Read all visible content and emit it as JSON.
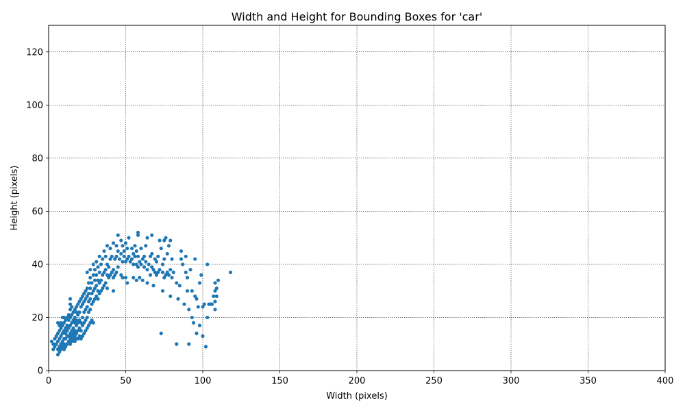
{
  "chart_data": {
    "type": "scatter",
    "title": "Width and Height for Bounding Boxes for 'car'",
    "xlabel": "Width (pixels)",
    "ylabel": "Height (pixels)",
    "xlim": [
      0,
      400
    ],
    "ylim": [
      0,
      130
    ],
    "xticks": [
      0,
      50,
      100,
      150,
      200,
      250,
      300,
      350,
      400
    ],
    "yticks": [
      0,
      20,
      40,
      60,
      80,
      100,
      120
    ],
    "grid": true,
    "color": "#1f77b4",
    "points": [
      [
        2,
        11
      ],
      [
        3,
        8
      ],
      [
        3,
        10
      ],
      [
        4,
        12
      ],
      [
        4,
        9
      ],
      [
        5,
        13
      ],
      [
        5,
        10
      ],
      [
        6,
        6
      ],
      [
        6,
        8
      ],
      [
        6,
        11
      ],
      [
        6,
        14
      ],
      [
        6,
        18
      ],
      [
        7,
        7
      ],
      [
        7,
        9
      ],
      [
        7,
        12
      ],
      [
        7,
        15
      ],
      [
        7,
        17
      ],
      [
        8,
        8
      ],
      [
        8,
        10
      ],
      [
        8,
        13
      ],
      [
        8,
        16
      ],
      [
        8,
        18
      ],
      [
        9,
        9
      ],
      [
        9,
        11
      ],
      [
        9,
        14
      ],
      [
        9,
        17
      ],
      [
        9,
        20
      ],
      [
        10,
        8
      ],
      [
        10,
        10
      ],
      [
        10,
        12
      ],
      [
        10,
        15
      ],
      [
        10,
        18
      ],
      [
        10,
        20
      ],
      [
        11,
        9
      ],
      [
        11,
        12
      ],
      [
        11,
        14
      ],
      [
        11,
        16
      ],
      [
        11,
        19
      ],
      [
        12,
        10
      ],
      [
        12,
        13
      ],
      [
        12,
        15
      ],
      [
        12,
        17
      ],
      [
        12,
        20
      ],
      [
        13,
        11
      ],
      [
        13,
        13
      ],
      [
        13,
        16
      ],
      [
        13,
        19
      ],
      [
        13,
        21
      ],
      [
        14,
        10
      ],
      [
        14,
        12
      ],
      [
        14,
        14
      ],
      [
        14,
        17
      ],
      [
        14,
        20
      ],
      [
        14,
        23
      ],
      [
        14,
        25
      ],
      [
        14,
        27
      ],
      [
        15,
        11
      ],
      [
        15,
        13
      ],
      [
        15,
        15
      ],
      [
        15,
        18
      ],
      [
        15,
        21
      ],
      [
        15,
        24
      ],
      [
        16,
        12
      ],
      [
        16,
        14
      ],
      [
        16,
        16
      ],
      [
        16,
        19
      ],
      [
        16,
        22
      ],
      [
        17,
        11
      ],
      [
        17,
        13
      ],
      [
        17,
        15
      ],
      [
        17,
        18
      ],
      [
        17,
        20
      ],
      [
        17,
        23
      ],
      [
        18,
        12
      ],
      [
        18,
        14
      ],
      [
        18,
        17
      ],
      [
        18,
        19
      ],
      [
        18,
        22
      ],
      [
        18,
        24
      ],
      [
        19,
        12
      ],
      [
        19,
        15
      ],
      [
        19,
        18
      ],
      [
        19,
        21
      ],
      [
        19,
        25
      ],
      [
        20,
        13
      ],
      [
        20,
        16
      ],
      [
        20,
        19
      ],
      [
        20,
        22
      ],
      [
        20,
        26
      ],
      [
        21,
        12
      ],
      [
        21,
        15
      ],
      [
        21,
        18
      ],
      [
        21,
        24
      ],
      [
        21,
        27
      ],
      [
        22,
        13
      ],
      [
        22,
        17
      ],
      [
        22,
        20
      ],
      [
        22,
        25
      ],
      [
        22,
        28
      ],
      [
        23,
        14
      ],
      [
        23,
        18
      ],
      [
        23,
        22
      ],
      [
        23,
        26
      ],
      [
        23,
        29
      ],
      [
        24,
        15
      ],
      [
        24,
        19
      ],
      [
        24,
        23
      ],
      [
        24,
        27
      ],
      [
        24,
        30
      ],
      [
        25,
        16
      ],
      [
        25,
        20
      ],
      [
        25,
        24
      ],
      [
        25,
        28
      ],
      [
        25,
        31
      ],
      [
        25,
        37
      ],
      [
        26,
        17
      ],
      [
        26,
        22
      ],
      [
        26,
        26
      ],
      [
        26,
        29
      ],
      [
        26,
        33
      ],
      [
        27,
        18
      ],
      [
        27,
        23
      ],
      [
        27,
        27
      ],
      [
        27,
        31
      ],
      [
        27,
        35
      ],
      [
        27,
        38
      ],
      [
        28,
        19
      ],
      [
        28,
        25
      ],
      [
        28,
        29
      ],
      [
        28,
        33
      ],
      [
        29,
        18
      ],
      [
        29,
        26
      ],
      [
        29,
        30
      ],
      [
        29,
        36
      ],
      [
        29,
        40
      ],
      [
        30,
        27
      ],
      [
        30,
        31
      ],
      [
        30,
        34
      ],
      [
        30,
        38
      ],
      [
        31,
        28
      ],
      [
        31,
        32
      ],
      [
        31,
        36
      ],
      [
        31,
        41
      ],
      [
        32,
        27
      ],
      [
        32,
        30
      ],
      [
        32,
        34
      ],
      [
        32,
        39
      ],
      [
        33,
        29
      ],
      [
        33,
        33
      ],
      [
        33,
        37
      ],
      [
        33,
        43
      ],
      [
        34,
        30
      ],
      [
        34,
        34
      ],
      [
        34,
        40
      ],
      [
        35,
        31
      ],
      [
        35,
        36
      ],
      [
        35,
        42
      ],
      [
        36,
        32
      ],
      [
        36,
        37
      ],
      [
        36,
        45
      ],
      [
        37,
        33
      ],
      [
        37,
        38
      ],
      [
        37,
        43
      ],
      [
        38,
        31
      ],
      [
        38,
        36
      ],
      [
        38,
        40
      ],
      [
        38,
        47
      ],
      [
        39,
        35
      ],
      [
        39,
        39
      ],
      [
        40,
        36
      ],
      [
        40,
        42
      ],
      [
        40,
        46
      ],
      [
        41,
        37
      ],
      [
        41,
        43
      ],
      [
        42,
        30
      ],
      [
        42,
        35
      ],
      [
        42,
        38
      ],
      [
        42,
        48
      ],
      [
        43,
        36
      ],
      [
        43,
        42
      ],
      [
        44,
        37
      ],
      [
        44,
        43
      ],
      [
        44,
        47
      ],
      [
        45,
        39
      ],
      [
        45,
        45
      ],
      [
        45,
        51
      ],
      [
        46,
        42
      ],
      [
        47,
        36
      ],
      [
        47,
        44
      ],
      [
        47,
        49
      ],
      [
        48,
        35
      ],
      [
        48,
        41
      ],
      [
        48,
        47
      ],
      [
        49,
        43
      ],
      [
        49,
        45
      ],
      [
        50,
        35
      ],
      [
        50,
        41
      ],
      [
        50,
        48
      ],
      [
        51,
        33
      ],
      [
        51,
        42
      ],
      [
        51,
        46
      ],
      [
        52,
        43
      ],
      [
        52,
        50
      ],
      [
        53,
        41
      ],
      [
        54,
        42
      ],
      [
        54,
        46
      ],
      [
        55,
        35
      ],
      [
        55,
        40
      ],
      [
        55,
        44
      ],
      [
        56,
        43
      ],
      [
        56,
        47
      ],
      [
        57,
        34
      ],
      [
        57,
        40
      ],
      [
        57,
        45
      ],
      [
        58,
        39
      ],
      [
        58,
        43
      ],
      [
        58,
        51
      ],
      [
        58,
        52
      ],
      [
        59,
        35
      ],
      [
        59,
        41
      ],
      [
        60,
        40
      ],
      [
        60,
        46
      ],
      [
        61,
        42
      ],
      [
        61,
        34
      ],
      [
        62,
        39
      ],
      [
        62,
        43
      ],
      [
        63,
        47
      ],
      [
        63,
        41
      ],
      [
        64,
        33
      ],
      [
        64,
        38
      ],
      [
        64,
        50
      ],
      [
        65,
        40
      ],
      [
        66,
        36
      ],
      [
        66,
        43
      ],
      [
        67,
        39
      ],
      [
        67,
        44
      ],
      [
        67,
        51
      ],
      [
        68,
        32
      ],
      [
        68,
        38
      ],
      [
        69,
        37
      ],
      [
        69,
        42
      ],
      [
        70,
        36
      ],
      [
        70,
        41
      ],
      [
        71,
        37
      ],
      [
        71,
        43
      ],
      [
        72,
        38
      ],
      [
        72,
        49
      ],
      [
        73,
        14
      ],
      [
        73,
        46
      ],
      [
        74,
        30
      ],
      [
        74,
        37
      ],
      [
        74,
        40
      ],
      [
        75,
        35
      ],
      [
        75,
        42
      ],
      [
        75,
        49
      ],
      [
        76,
        36
      ],
      [
        76,
        50
      ],
      [
        77,
        37
      ],
      [
        77,
        44
      ],
      [
        78,
        36
      ],
      [
        78,
        47
      ],
      [
        79,
        28
      ],
      [
        79,
        38
      ],
      [
        79,
        49
      ],
      [
        80,
        35
      ],
      [
        80,
        42
      ],
      [
        81,
        37
      ],
      [
        83,
        10
      ],
      [
        83,
        33
      ],
      [
        84,
        27
      ],
      [
        85,
        32
      ],
      [
        86,
        42
      ],
      [
        86,
        45
      ],
      [
        87,
        40
      ],
      [
        88,
        25
      ],
      [
        89,
        37
      ],
      [
        89,
        43
      ],
      [
        90,
        30
      ],
      [
        90,
        35
      ],
      [
        91,
        23
      ],
      [
        91,
        10
      ],
      [
        92,
        38
      ],
      [
        93,
        20
      ],
      [
        93,
        30
      ],
      [
        94,
        18
      ],
      [
        95,
        28
      ],
      [
        95,
        42
      ],
      [
        96,
        14
      ],
      [
        96,
        27
      ],
      [
        97,
        24
      ],
      [
        98,
        17
      ],
      [
        98,
        33
      ],
      [
        99,
        36
      ],
      [
        100,
        13
      ],
      [
        100,
        24
      ],
      [
        101,
        25
      ],
      [
        102,
        9
      ],
      [
        103,
        20
      ],
      [
        103,
        40
      ],
      [
        104,
        25
      ],
      [
        105,
        25
      ],
      [
        106,
        25
      ],
      [
        107,
        28
      ],
      [
        108,
        23
      ],
      [
        108,
        26
      ],
      [
        108,
        30
      ],
      [
        108,
        33
      ],
      [
        109,
        28
      ],
      [
        109,
        31
      ],
      [
        110,
        34
      ],
      [
        118,
        37
      ]
    ]
  }
}
